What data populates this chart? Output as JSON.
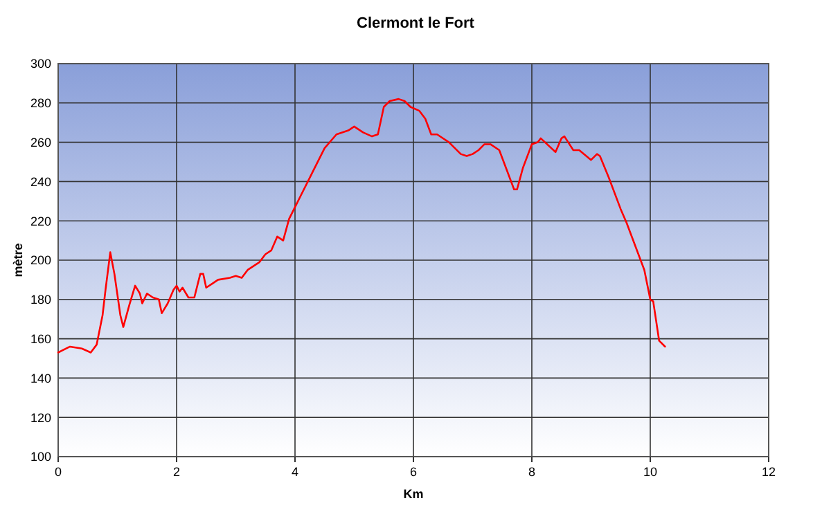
{
  "chart_data": {
    "type": "line",
    "title": "Clermont le Fort",
    "xlabel": "Km",
    "ylabel": "mètre",
    "xlim": [
      0,
      12
    ],
    "xticks": [
      0,
      2,
      4,
      6,
      8,
      10,
      12
    ],
    "ylim": [
      100,
      300
    ],
    "yticks": [
      100,
      120,
      140,
      160,
      180,
      200,
      220,
      240,
      260,
      280,
      300
    ],
    "grid": true,
    "marker": "none",
    "line_style": "solid",
    "series": [
      {
        "color": "#ff0000",
        "x": [
          0,
          0.2,
          0.4,
          0.55,
          0.65,
          0.75,
          0.8,
          0.88,
          0.95,
          1.05,
          1.1,
          1.2,
          1.3,
          1.38,
          1.42,
          1.5,
          1.6,
          1.7,
          1.75,
          1.85,
          1.95,
          2.0,
          2.05,
          2.1,
          2.2,
          2.3,
          2.4,
          2.45,
          2.5,
          2.6,
          2.7,
          2.9,
          3.0,
          3.1,
          3.2,
          3.4,
          3.5,
          3.6,
          3.7,
          3.8,
          3.9,
          4.0,
          4.1,
          4.3,
          4.5,
          4.7,
          4.9,
          5.0,
          5.15,
          5.3,
          5.4,
          5.5,
          5.6,
          5.75,
          5.85,
          5.95,
          6.1,
          6.2,
          6.3,
          6.4,
          6.6,
          6.8,
          6.9,
          7.0,
          7.1,
          7.2,
          7.3,
          7.45,
          7.6,
          7.7,
          7.75,
          7.85,
          8.0,
          8.1,
          8.15,
          8.4,
          8.5,
          8.55,
          8.7,
          8.8,
          9.0,
          9.1,
          9.15,
          9.3,
          9.5,
          9.6,
          9.8,
          9.9,
          10.0,
          10.05,
          10.15,
          10.25
        ],
        "values": [
          153,
          156,
          155,
          153,
          157,
          172,
          185,
          204,
          193,
          172,
          166,
          177,
          187,
          183,
          178,
          183,
          181,
          180,
          173,
          178,
          185,
          187,
          184,
          186,
          181,
          181,
          193,
          193,
          186,
          188,
          190,
          191,
          192,
          191,
          195,
          199,
          203,
          205,
          212,
          210,
          221,
          227,
          233,
          245,
          257,
          264,
          266,
          268,
          265,
          263,
          264,
          278,
          281,
          282,
          281,
          278,
          276,
          272,
          264,
          264,
          260,
          254,
          253,
          254,
          256,
          259,
          259,
          256,
          244,
          236,
          236,
          247,
          259,
          260,
          262,
          255,
          262,
          263,
          256,
          256,
          251,
          254,
          253,
          242,
          226,
          219,
          203,
          195,
          180,
          179,
          159,
          156
        ]
      }
    ]
  }
}
